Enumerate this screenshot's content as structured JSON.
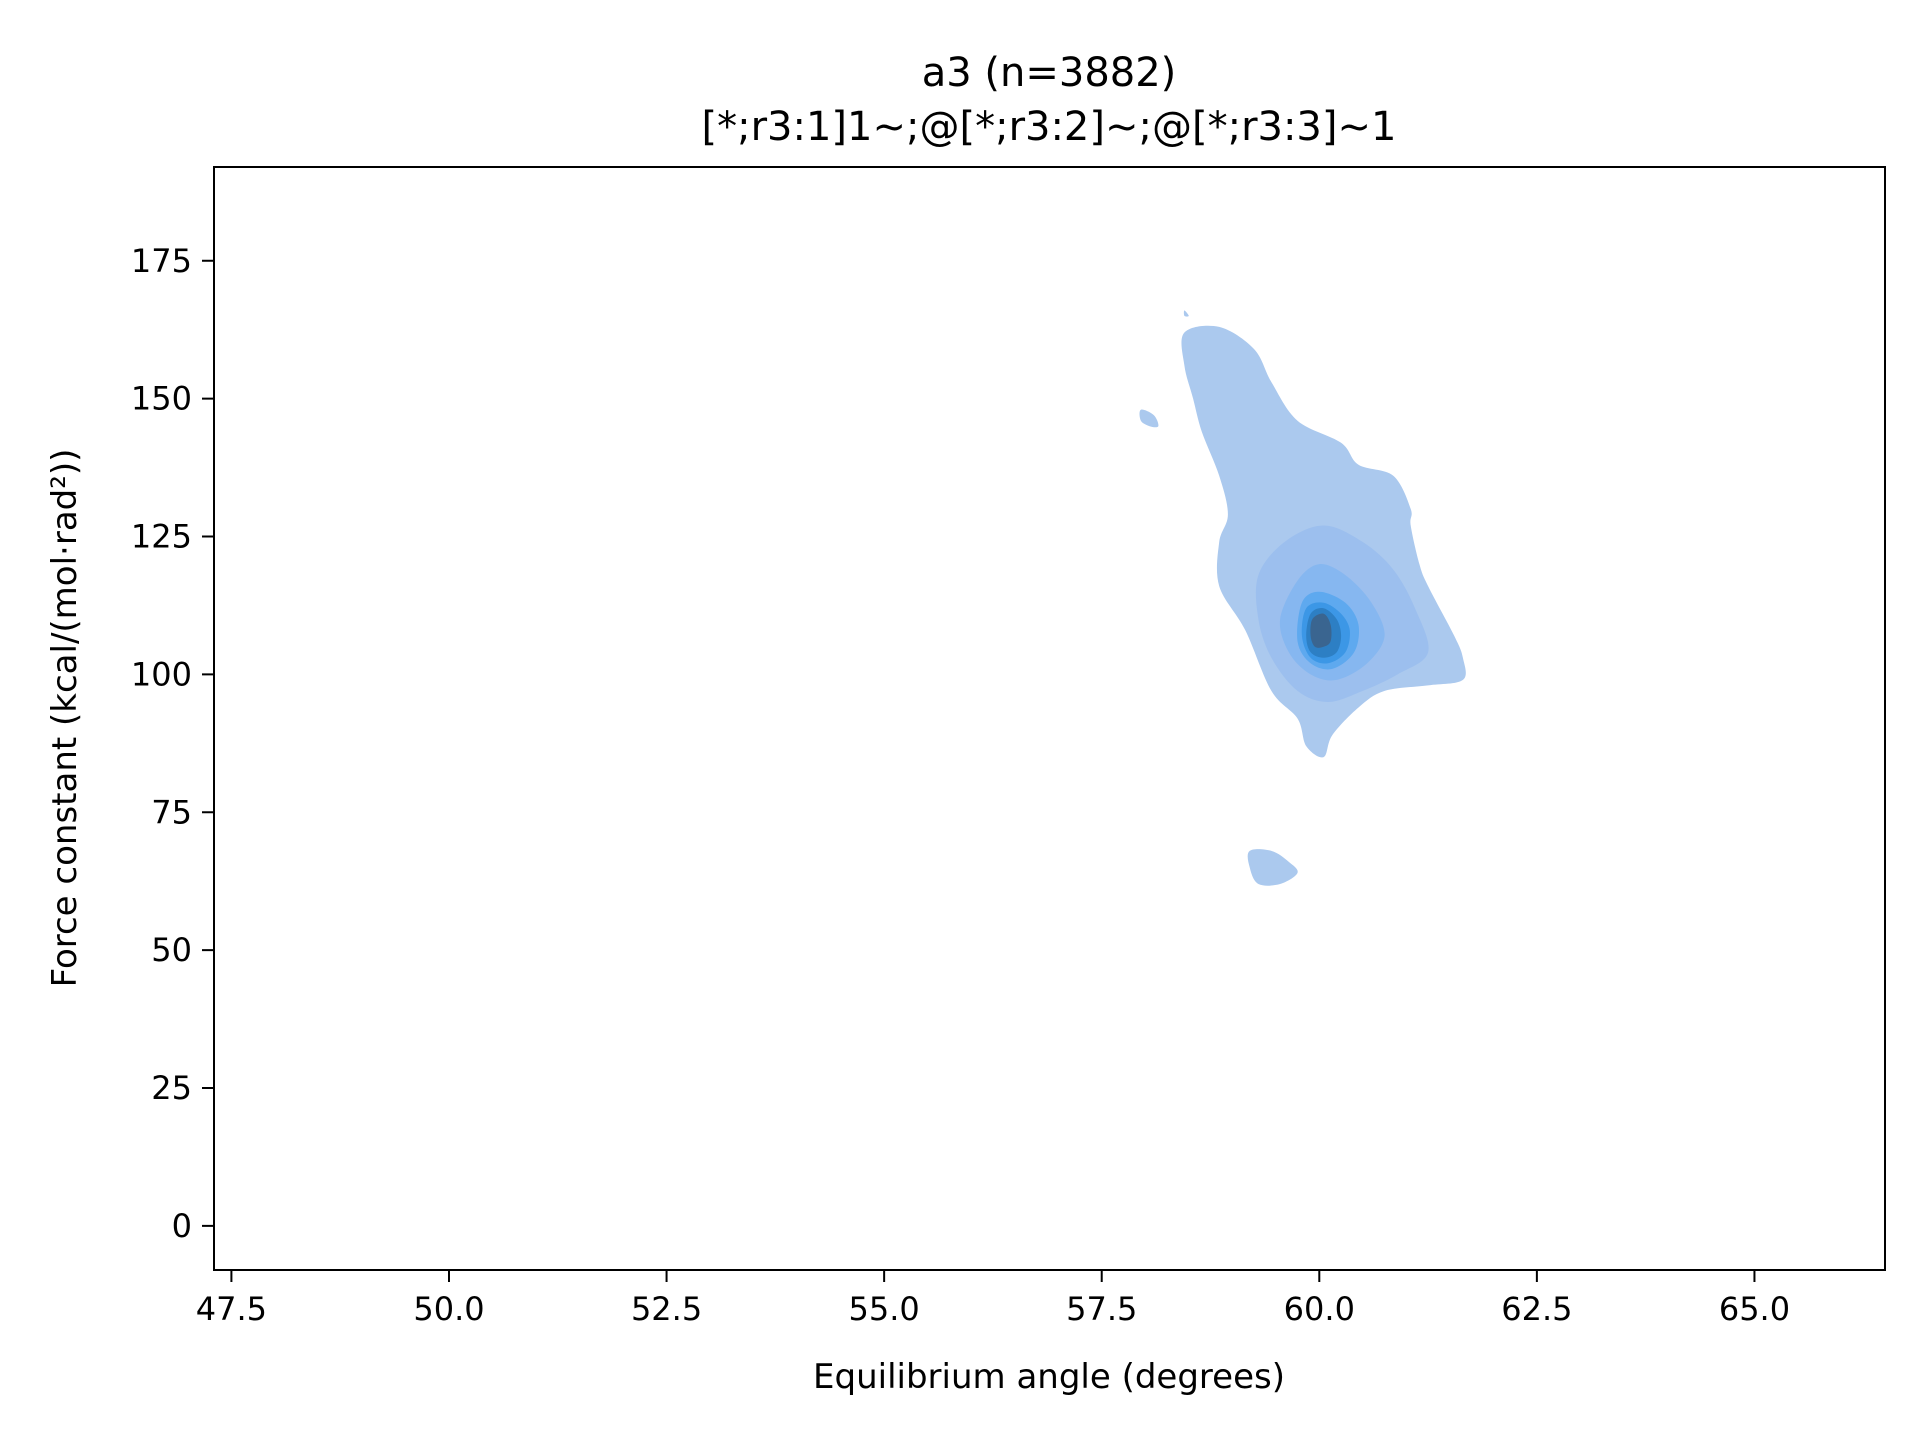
{
  "chart_data": {
    "type": "kde-contour",
    "title": "a3 (n=3882)",
    "subtitle": "[*;r3:1]1~;@[*;r3:2]~;@[*;r3:3]~1",
    "xlabel": "Equilibrium angle (degrees)",
    "ylabel": "Force constant (kcal/(mol·rad²))",
    "xlim": [
      47.3,
      66.5
    ],
    "ylim": [
      -8,
      192
    ],
    "xticks": [
      47.5,
      50.0,
      52.5,
      55.0,
      57.5,
      60.0,
      62.5,
      65.0
    ],
    "xtick_labels": [
      "47.5",
      "50.0",
      "52.5",
      "55.0",
      "57.5",
      "60.0",
      "62.5",
      "65.0"
    ],
    "yticks": [
      0,
      25,
      50,
      75,
      100,
      125,
      150,
      175
    ],
    "ytick_labels": [
      "0",
      "25",
      "50",
      "75",
      "100",
      "125",
      "150",
      "175"
    ],
    "grid": false,
    "levels": [
      {
        "color": "#abc9ee",
        "points": [
          [
            58.45,
            162
          ],
          [
            58.85,
            163
          ],
          [
            59.25,
            159
          ],
          [
            59.45,
            153
          ],
          [
            59.75,
            146
          ],
          [
            60.25,
            142
          ],
          [
            60.45,
            138
          ],
          [
            60.85,
            136
          ],
          [
            61.05,
            130
          ],
          [
            61.05,
            127
          ],
          [
            61.15,
            120
          ],
          [
            61.25,
            116
          ],
          [
            61.55,
            107
          ],
          [
            61.65,
            103
          ],
          [
            61.65,
            99
          ],
          [
            61.25,
            98
          ],
          [
            60.75,
            97
          ],
          [
            60.45,
            94
          ],
          [
            60.15,
            89
          ],
          [
            60.05,
            85
          ],
          [
            59.85,
            87
          ],
          [
            59.75,
            92
          ],
          [
            59.45,
            97
          ],
          [
            59.15,
            108
          ],
          [
            58.85,
            116
          ],
          [
            58.85,
            124
          ],
          [
            58.95,
            129
          ],
          [
            58.85,
            136
          ],
          [
            58.65,
            144
          ],
          [
            58.55,
            150
          ],
          [
            58.45,
            156
          ]
        ]
      },
      {
        "color": "#abc9ee",
        "points": [
          [
            57.95,
            148
          ],
          [
            58.1,
            147
          ],
          [
            58.15,
            145
          ],
          [
            58.05,
            145
          ],
          [
            57.95,
            146
          ]
        ]
      },
      {
        "color": "#abc9ee",
        "points": [
          [
            58.45,
            166
          ],
          [
            58.5,
            165
          ],
          [
            58.45,
            165
          ]
        ]
      },
      {
        "color": "#abc9ee",
        "points": [
          [
            59.2,
            68
          ],
          [
            59.45,
            68
          ],
          [
            59.65,
            66
          ],
          [
            59.75,
            64
          ],
          [
            59.55,
            62
          ],
          [
            59.3,
            62
          ],
          [
            59.2,
            65
          ]
        ]
      },
      {
        "color": "#9cbfee",
        "points": [
          [
            59.6,
            124
          ],
          [
            60.05,
            127
          ],
          [
            60.5,
            124
          ],
          [
            60.85,
            119
          ],
          [
            61.1,
            112
          ],
          [
            61.25,
            104
          ],
          [
            60.9,
            100
          ],
          [
            60.5,
            97
          ],
          [
            60.1,
            95
          ],
          [
            59.75,
            97
          ],
          [
            59.45,
            103
          ],
          [
            59.3,
            110
          ],
          [
            59.3,
            118
          ]
        ]
      },
      {
        "color": "#86b7f0",
        "points": [
          [
            59.75,
            117
          ],
          [
            60.0,
            120
          ],
          [
            60.3,
            118
          ],
          [
            60.6,
            113
          ],
          [
            60.75,
            107
          ],
          [
            60.55,
            102
          ],
          [
            60.2,
            99
          ],
          [
            59.9,
            100
          ],
          [
            59.65,
            104
          ],
          [
            59.55,
            110
          ]
        ]
      },
      {
        "color": "#5ea9ef",
        "points": [
          [
            59.8,
            113
          ],
          [
            60.0,
            115
          ],
          [
            60.3,
            113
          ],
          [
            60.45,
            109
          ],
          [
            60.4,
            104
          ],
          [
            60.15,
            101
          ],
          [
            59.9,
            102
          ],
          [
            59.75,
            106
          ]
        ]
      },
      {
        "color": "#3c97e6",
        "points": [
          [
            59.85,
            112
          ],
          [
            60.05,
            113
          ],
          [
            60.25,
            111
          ],
          [
            60.35,
            108
          ],
          [
            60.3,
            104
          ],
          [
            60.1,
            102
          ],
          [
            59.9,
            103
          ],
          [
            59.8,
            107
          ]
        ]
      },
      {
        "color": "#2d7fc4",
        "points": [
          [
            59.9,
            111
          ],
          [
            60.05,
            112
          ],
          [
            60.2,
            110
          ],
          [
            60.25,
            107
          ],
          [
            60.2,
            104
          ],
          [
            60.05,
            103
          ],
          [
            59.9,
            104
          ],
          [
            59.85,
            107
          ]
        ]
      },
      {
        "color": "#3a6590",
        "points": [
          [
            59.92,
            110
          ],
          [
            60.05,
            111
          ],
          [
            60.13,
            109
          ],
          [
            60.13,
            106
          ],
          [
            60.05,
            105
          ],
          [
            59.95,
            105
          ],
          [
            59.9,
            107
          ]
        ]
      }
    ]
  }
}
